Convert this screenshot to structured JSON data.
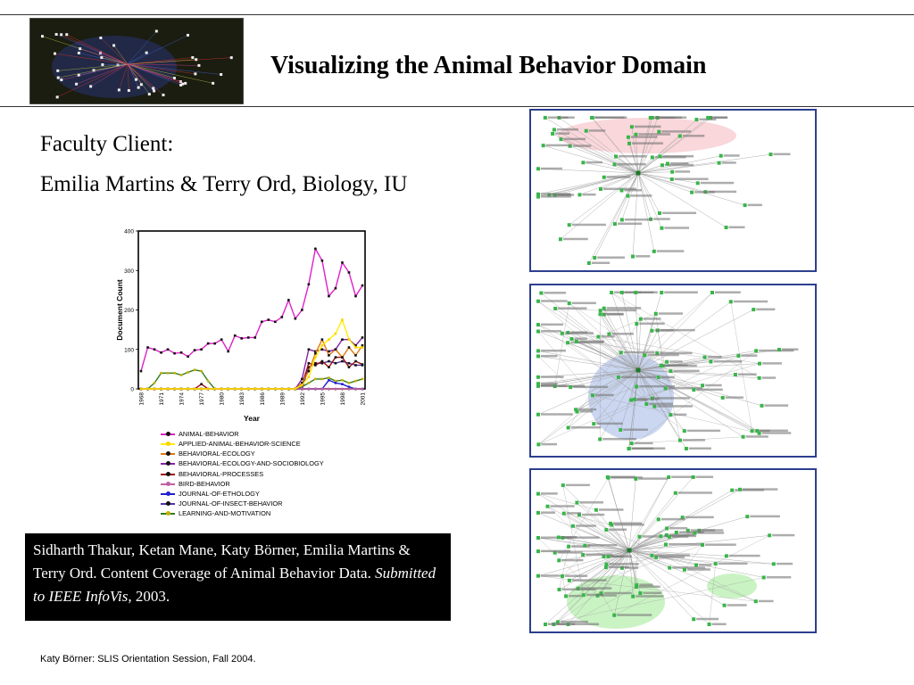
{
  "slide": {
    "title": "Visualizing the Animal Behavior Domain",
    "faculty_label": "Faculty Client:",
    "faculty_names": "Emilia Martins & Terry Ord, Biology, IU",
    "citation_prefix": "Sidharth Thakur, Ketan Mane, Katy Börner, Emilia Martins & Terry Ord. Content Coverage of  Animal Behavior Data. ",
    "citation_venue": "Submitted to IEEE InfoVis",
    "citation_suffix": ", 2003.",
    "footer": "Katy Börner: SLIS Orientation Session, Fall 2004."
  },
  "colors": {
    "panel_border": "#2d3f8f",
    "node_green": "#39b54a",
    "network_edge": "#999999",
    "pink_highlight": "#f7c9cf",
    "blue_highlight": "#b9c9ec",
    "green_highlight": "#b8efb0"
  },
  "images": {
    "thumbnail": "network-visualization-thumbnail",
    "panels": [
      "network-panel-top",
      "network-panel-middle",
      "network-panel-bottom"
    ]
  },
  "chart_data": {
    "type": "line",
    "xlabel": "Year",
    "ylabel": "Document Count",
    "ylim": [
      0,
      400
    ],
    "yticks": [
      "0",
      "100",
      "200",
      "300",
      "400"
    ],
    "xlim": [
      1968,
      2001
    ],
    "xtick_labels": [
      "1968",
      "1971",
      "1974",
      "1977",
      "1980",
      "1983",
      "1986",
      "1989",
      "1992",
      "1995",
      "1998",
      "2001"
    ],
    "x": [
      1968,
      1969,
      1970,
      1971,
      1972,
      1973,
      1974,
      1975,
      1976,
      1977,
      1978,
      1979,
      1980,
      1981,
      1982,
      1983,
      1984,
      1985,
      1986,
      1987,
      1988,
      1989,
      1990,
      1991,
      1992,
      1993,
      1994,
      1995,
      1996,
      1997,
      1998,
      1999,
      2000,
      2001
    ],
    "series": [
      {
        "name": "ANIMAL-BEHAVIOR",
        "color": "#e020c8",
        "marker": "#111111",
        "values": [
          45,
          105,
          100,
          92,
          100,
          90,
          92,
          82,
          98,
          100,
          115,
          115,
          125,
          95,
          135,
          128,
          130,
          130,
          170,
          175,
          170,
          182,
          225,
          178,
          200,
          265,
          355,
          325,
          235,
          255,
          320,
          295,
          235,
          262
        ]
      },
      {
        "name": "APPLIED-ANIMAL-BEHAVIOR-SCIENCE",
        "color": "#ffee00",
        "marker": "#ffd000",
        "values": [
          0,
          0,
          0,
          0,
          0,
          0,
          0,
          0,
          0,
          0,
          0,
          0,
          0,
          0,
          0,
          0,
          0,
          0,
          0,
          0,
          0,
          0,
          0,
          0,
          10,
          30,
          80,
          110,
          125,
          140,
          175,
          125,
          105,
          105
        ]
      },
      {
        "name": "BEHAVIORAL-ECOLOGY",
        "color": "#e07810",
        "marker": "#111111",
        "values": [
          0,
          0,
          0,
          0,
          0,
          0,
          0,
          0,
          0,
          0,
          0,
          0,
          0,
          0,
          0,
          0,
          0,
          0,
          0,
          0,
          0,
          0,
          0,
          0,
          15,
          45,
          90,
          125,
          85,
          100,
          80,
          105,
          85,
          110
        ]
      },
      {
        "name": "BEHAVIORAL-ECOLOGY-AND-SOCIOBIOLOGY",
        "color": "#8822aa",
        "marker": "#111111",
        "values": [
          0,
          0,
          0,
          0,
          0,
          0,
          0,
          0,
          0,
          0,
          0,
          0,
          0,
          0,
          0,
          0,
          0,
          0,
          0,
          0,
          0,
          0,
          0,
          0,
          25,
          100,
          95,
          100,
          95,
          100,
          125,
          125,
          110,
          130
        ]
      },
      {
        "name": "BEHAVIORAL-PROCESSES",
        "color": "#a01010",
        "marker": "#111111",
        "values": [
          0,
          0,
          0,
          0,
          0,
          0,
          0,
          0,
          0,
          12,
          0,
          0,
          0,
          0,
          0,
          0,
          0,
          0,
          0,
          0,
          0,
          0,
          0,
          0,
          10,
          65,
          60,
          70,
          55,
          80,
          80,
          55,
          70,
          62
        ]
      },
      {
        "name": "BIRD-BEHAVIOR",
        "color": "#c060a0",
        "marker": "#c060a0",
        "values": [
          0,
          0,
          0,
          0,
          0,
          0,
          0,
          0,
          0,
          0,
          0,
          0,
          0,
          0,
          0,
          0,
          0,
          0,
          0,
          0,
          0,
          0,
          0,
          0,
          0,
          0,
          0,
          0,
          0,
          0,
          0,
          0,
          0,
          0
        ]
      },
      {
        "name": "JOURNAL-OF-ETHOLOGY",
        "color": "#2020d0",
        "marker": "#2020d0",
        "values": [
          0,
          0,
          0,
          0,
          0,
          0,
          0,
          0,
          0,
          0,
          0,
          0,
          0,
          0,
          0,
          0,
          0,
          0,
          0,
          0,
          0,
          0,
          0,
          0,
          0,
          0,
          0,
          0,
          22,
          15,
          12,
          5,
          0,
          0
        ]
      },
      {
        "name": "JOURNAL-OF-INSECT-BEHAVIOR",
        "color": "#5533aa",
        "marker": "#111111",
        "values": [
          0,
          0,
          0,
          0,
          0,
          0,
          0,
          0,
          0,
          0,
          0,
          0,
          0,
          0,
          0,
          0,
          0,
          0,
          0,
          0,
          0,
          0,
          0,
          0,
          0,
          55,
          65,
          65,
          70,
          65,
          70,
          65,
          60,
          60
        ]
      },
      {
        "name": "LEARNING-AND-MOTIVATION",
        "color": "#2e7d1f",
        "marker": "#c8b000",
        "values": [
          0,
          0,
          15,
          40,
          40,
          40,
          35,
          42,
          48,
          45,
          20,
          0,
          0,
          0,
          0,
          0,
          0,
          0,
          0,
          0,
          0,
          0,
          0,
          0,
          5,
          15,
          25,
          25,
          28,
          20,
          22,
          15,
          20,
          25
        ]
      }
    ]
  }
}
